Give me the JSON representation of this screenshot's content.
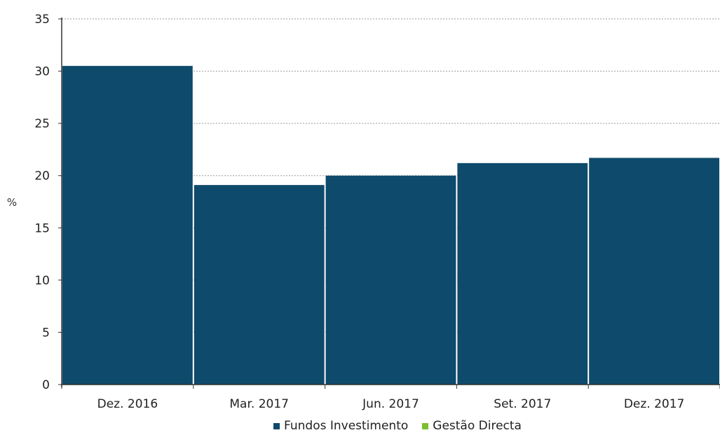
{
  "chart_data": {
    "type": "bar",
    "ylabel": "%",
    "ylim": [
      0,
      35
    ],
    "yticks": [
      0,
      5,
      10,
      15,
      20,
      25,
      30,
      35
    ],
    "categories": [
      "Dez. 2016",
      "Mar. 2017",
      "Jun. 2017",
      "Set. 2017",
      "Dez. 2017"
    ],
    "series": [
      {
        "name": "Fundos Investimento",
        "color": "#0e4a6b",
        "values": [
          30.5,
          19.1,
          20.0,
          21.2,
          21.7
        ]
      },
      {
        "name": "Gestão Directa",
        "color": "#7cbf2f",
        "values": [
          0,
          0,
          0,
          0,
          0
        ]
      }
    ],
    "grid": true,
    "legend_position": "bottom"
  }
}
